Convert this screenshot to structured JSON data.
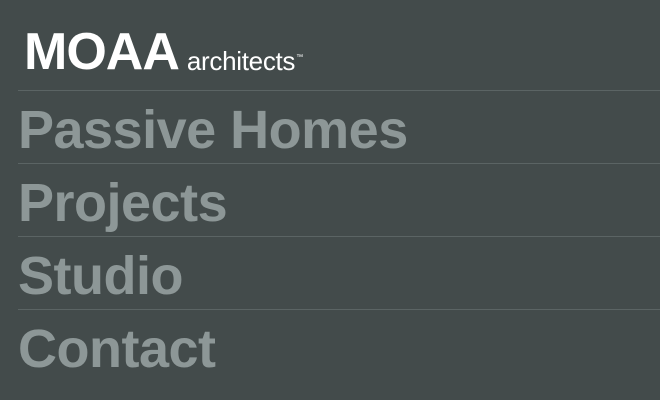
{
  "header": {
    "brand": "MOAA",
    "suffix": "architects",
    "trademark": "™"
  },
  "nav": {
    "items": [
      {
        "label": "Passive Homes"
      },
      {
        "label": "Projects"
      },
      {
        "label": "Studio"
      },
      {
        "label": "Contact"
      }
    ]
  },
  "colors": {
    "background": "#434b4b",
    "brand_text": "#ffffff",
    "nav_text": "#8d9797",
    "divider": "#5b6464"
  }
}
